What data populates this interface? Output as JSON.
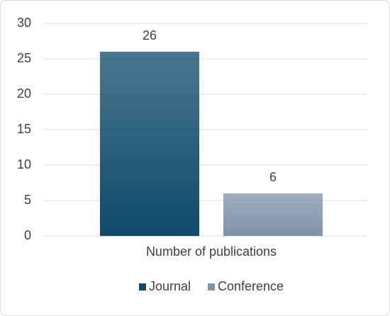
{
  "chart_data": {
    "type": "bar",
    "categories": [
      "Number of publications"
    ],
    "series": [
      {
        "name": "Journal",
        "color": "#0e4a6b",
        "values": [
          26
        ]
      },
      {
        "name": "Conference",
        "color": "#7f93a8",
        "values": [
          6
        ]
      }
    ],
    "ylim": [
      0,
      30
    ],
    "yticks": [
      0,
      5,
      10,
      15,
      20,
      25,
      30
    ],
    "grid": true,
    "legend": "bottom"
  }
}
